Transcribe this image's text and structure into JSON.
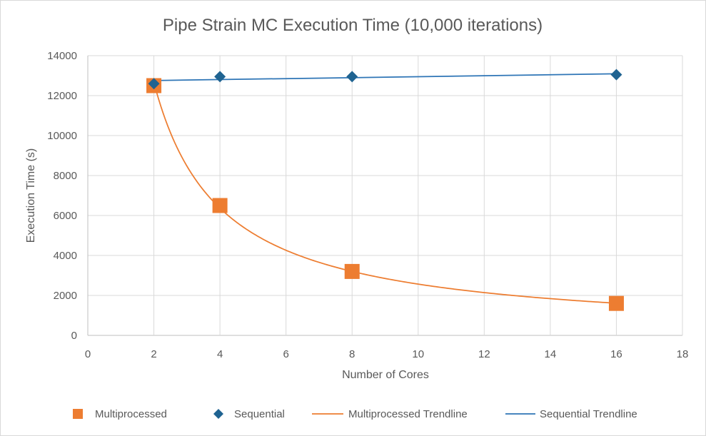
{
  "chart_data": {
    "type": "scatter",
    "title": "Pipe Strain MC Execution Time (10,000 iterations)",
    "xlabel": "Number of Cores",
    "ylabel": "Execution Time (s)",
    "xlim": [
      0,
      18
    ],
    "ylim": [
      0,
      14000
    ],
    "x_ticks": [
      "0",
      "2",
      "4",
      "6",
      "8",
      "10",
      "12",
      "14",
      "16",
      "18"
    ],
    "y_ticks": [
      "0",
      "2000",
      "4000",
      "6000",
      "8000",
      "10000",
      "12000",
      "14000"
    ],
    "grid": true,
    "legend_position": "bottom",
    "series": [
      {
        "name": "Multiprocessed",
        "marker": "square",
        "color": "#ed7d31",
        "points": [
          {
            "x": 2,
            "y": 12500
          },
          {
            "x": 4,
            "y": 6500
          },
          {
            "x": 8,
            "y": 3200
          },
          {
            "x": 16,
            "y": 1600
          }
        ]
      },
      {
        "name": "Sequential",
        "marker": "diamond",
        "color": "#1f6391",
        "points": [
          {
            "x": 2,
            "y": 12600
          },
          {
            "x": 4,
            "y": 12950
          },
          {
            "x": 8,
            "y": 12950
          },
          {
            "x": 16,
            "y": 13050
          }
        ]
      }
    ],
    "trendlines": [
      {
        "name": "Multiprocessed Trendline",
        "kind": "power",
        "color": "#ed7d31"
      },
      {
        "name": "Sequential Trendline",
        "kind": "linear",
        "color": "#2e75b6"
      }
    ]
  }
}
